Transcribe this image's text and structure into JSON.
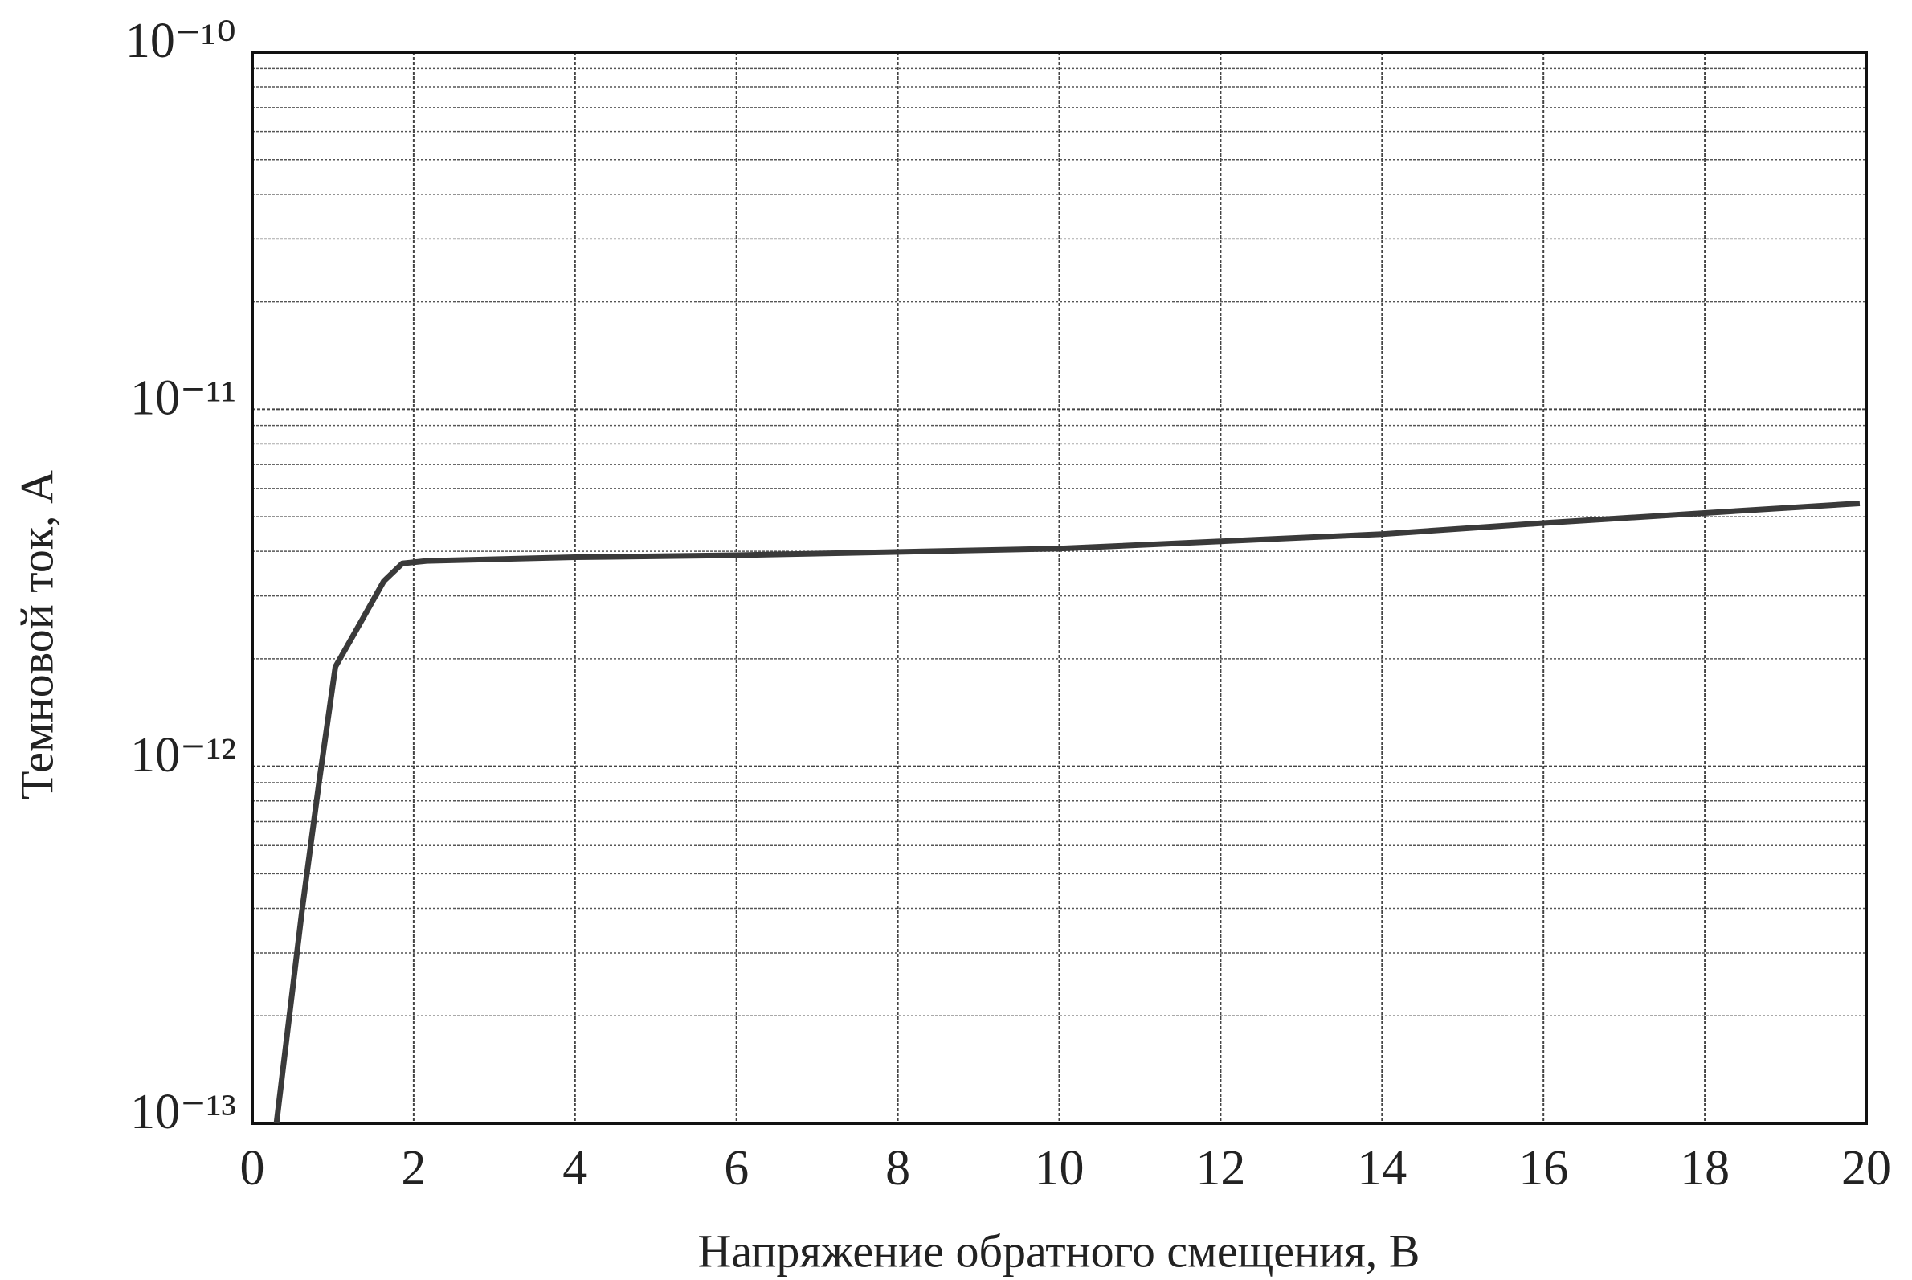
{
  "chart_data": {
    "type": "line",
    "x_label": "Напряжение обратного смещения, В",
    "y_label": "Темновой ток, А",
    "x": [
      0.3,
      0.62,
      0.83,
      1.03,
      1.33,
      1.63,
      1.86,
      2.16,
      4,
      6,
      10,
      14,
      16,
      19.92
    ],
    "series": [
      {
        "color": "#3a3a3a",
        "values": [
          1e-13,
          4e-13,
          9.1e-13,
          1.9e-12,
          2.5e-12,
          3.3e-12,
          3.7e-12,
          3.76e-12,
          3.85e-12,
          3.9e-12,
          4.07e-12,
          4.47e-12,
          4.8e-12,
          5.45e-12
        ]
      }
    ],
    "xlim": [
      0,
      20
    ],
    "xticks": [
      0,
      2,
      4,
      6,
      8,
      10,
      12,
      14,
      16,
      18,
      20
    ],
    "ylim": [
      1e-13,
      1e-10
    ],
    "yticks": [
      {
        "value": 1e-13,
        "label": "10⁻¹³"
      },
      {
        "value": 1e-12,
        "label": "10⁻¹²"
      },
      {
        "value": 1e-11,
        "label": "10⁻¹¹"
      },
      {
        "value": 1e-10,
        "label": "10⁻¹⁰"
      }
    ],
    "log_y": true,
    "grid": true,
    "minor_grid": true
  }
}
